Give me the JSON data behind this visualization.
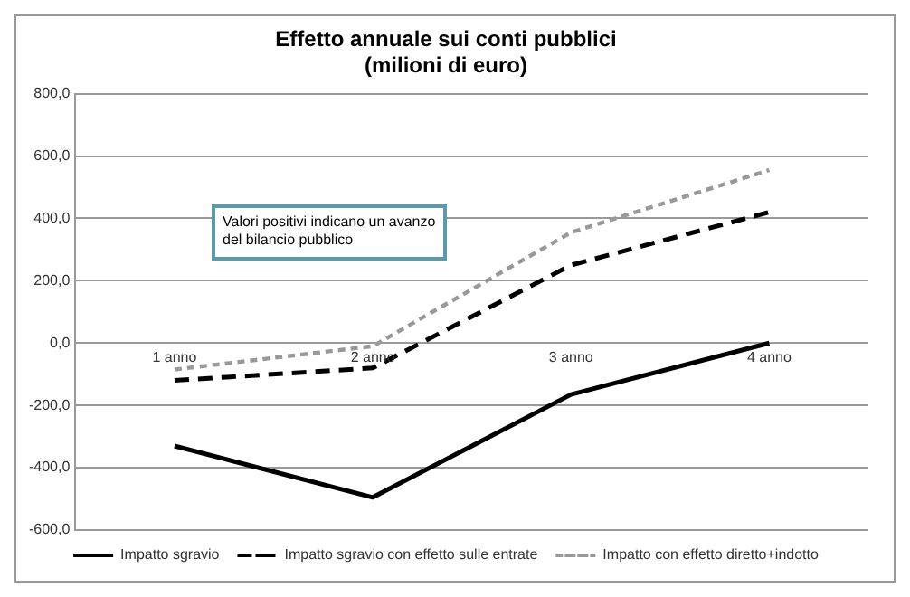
{
  "chart_data": {
    "type": "line",
    "title": "Effetto annuale sui conti pubblici",
    "subtitle": "(milioni di euro)",
    "categories": [
      "1 anno",
      "2 anno",
      "3 anno",
      "4 anno"
    ],
    "series": [
      {
        "name": "Impatto sgravio",
        "color": "#000000",
        "line_style": "solid",
        "values": [
          -330,
          -495,
          -165,
          0
        ]
      },
      {
        "name": "Impatto sgravio con effetto sulle entrate",
        "color": "#000000",
        "line_style": "dashed",
        "values": [
          -120,
          -80,
          250,
          420
        ]
      },
      {
        "name": "Impatto con effetto diretto+indotto",
        "color": "#999999",
        "line_style": "dotted",
        "values": [
          -85,
          -10,
          355,
          555
        ]
      }
    ],
    "ylim": [
      -600,
      800
    ],
    "yticks": [
      {
        "value": -600,
        "label": "-600,0"
      },
      {
        "value": -400,
        "label": "-400,0"
      },
      {
        "value": -200,
        "label": "-200,0"
      },
      {
        "value": 0,
        "label": "0,0"
      },
      {
        "value": 200,
        "label": "200,0"
      },
      {
        "value": 400,
        "label": "400,0"
      },
      {
        "value": 600,
        "label": "600,0"
      },
      {
        "value": 800,
        "label": "800,0"
      }
    ],
    "grid": "y",
    "legend": "bottom",
    "marker": "none",
    "annotations": [
      "Valori positivi indicano un avanzo del bilancio pubblico"
    ]
  }
}
